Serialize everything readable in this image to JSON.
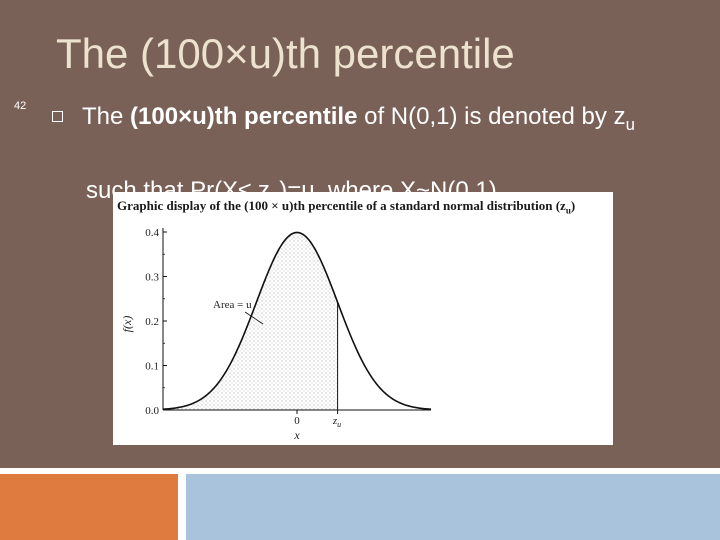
{
  "slide": {
    "title": "The (100×u)th percentile",
    "number": "42",
    "bullet": {
      "intro": "The ",
      "bold_term": "(100×u)th percentile",
      "mid": " of N(0,1) is denoted by z",
      "mid_sub": "u",
      "line3": "such that Pr(X≤ z",
      "line3_sub": "u",
      "line3_end": ")=u, where X~N(0,1)"
    },
    "colors": {
      "panel": "#7a6158",
      "title": "#ece2cd",
      "bar_orange": "#e07b3f",
      "bar_blue": "#a9c3dc"
    }
  },
  "figure": {
    "caption": "Graphic display of the (100 × u)th percentile of a standard normal distribution (z",
    "caption_sub": "u",
    "caption_end": ")",
    "ylabel": "f(x)",
    "xlabel": "x",
    "area_label": "Area = u",
    "x_tick_0": "0",
    "x_tick_zu": "z",
    "x_tick_zu_sub": "u",
    "y_ticks": [
      "0.4",
      "0.3",
      "0.2",
      "0.1",
      "0.0"
    ]
  },
  "chart_data": {
    "type": "area",
    "title": "Graphic display of the (100 × u)th percentile of a standard normal distribution (zu)",
    "xlabel": "x",
    "ylabel": "f(x)",
    "ylim": [
      0,
      0.4
    ],
    "xlim": [
      -3.3,
      3.3
    ],
    "series": [
      {
        "values": [
          {
            "x": -3.0,
            "y": 0.004
          },
          {
            "x": -2.5,
            "y": 0.018
          },
          {
            "x": -2.0,
            "y": 0.054
          },
          {
            "x": -1.5,
            "y": 0.13
          },
          {
            "x": -1.0,
            "y": 0.242
          },
          {
            "x": -0.5,
            "y": 0.352
          },
          {
            "x": 0.0,
            "y": 0.399
          },
          {
            "x": 0.5,
            "y": 0.352
          },
          {
            "x": 1.0,
            "y": 0.242
          },
          {
            "x": 1.5,
            "y": 0.13
          },
          {
            "x": 2.0,
            "y": 0.054
          },
          {
            "x": 2.5,
            "y": 0.018
          },
          {
            "x": 3.0,
            "y": 0.004
          }
        ]
      }
    ],
    "shaded_region": {
      "from": -3.3,
      "to": 1.0,
      "label": "Area = u"
    },
    "annotations": [
      "zu"
    ]
  }
}
